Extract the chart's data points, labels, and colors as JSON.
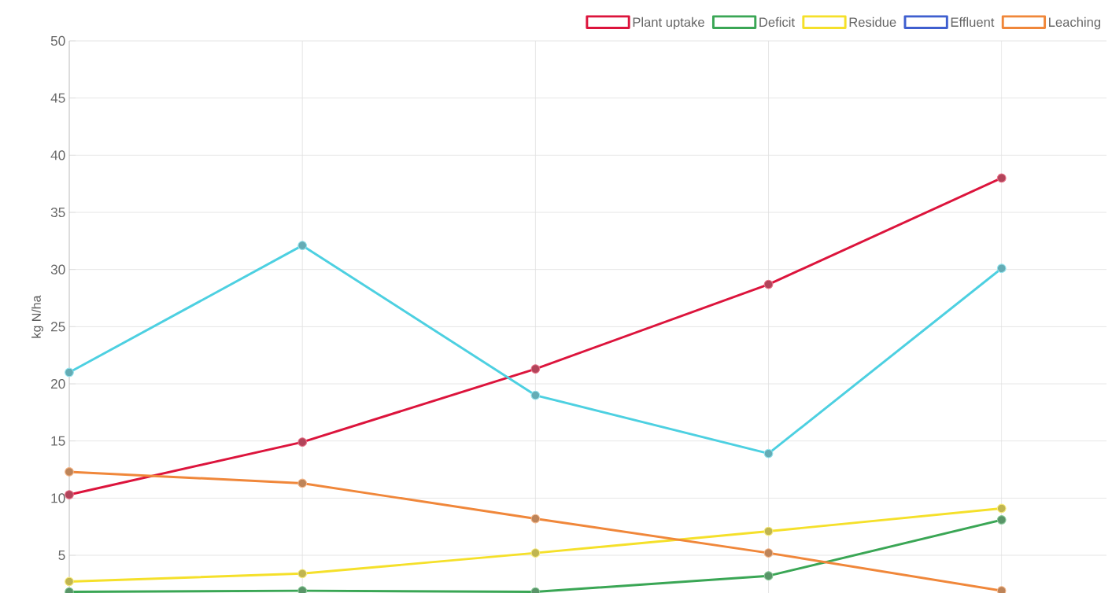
{
  "chart_data": {
    "type": "line",
    "ylabel": "kg N/ha",
    "categories": [
      null,
      null,
      null,
      null,
      null
    ],
    "ylim": [
      1.7,
      50
    ],
    "yticks": [
      5,
      10,
      15,
      20,
      25,
      30,
      35,
      40,
      45,
      50
    ],
    "tick_labels": "y",
    "grid": true,
    "legend": "top right",
    "marker": "circle",
    "line_style": "solid",
    "series": [
      {
        "name": "Plant uptake",
        "color": "#dc143c",
        "values": [
          10.3,
          14.9,
          21.3,
          28.7,
          38.0
        ]
      },
      {
        "name": "Deficit",
        "color": "#3aa655",
        "values": [
          1.8,
          1.9,
          1.8,
          3.2,
          8.1
        ]
      },
      {
        "name": "Residue",
        "color": "#f5e02a",
        "values": [
          2.7,
          3.4,
          5.2,
          7.1,
          9.1
        ]
      },
      {
        "name": "Effluent",
        "color": "#3f5fcf",
        "values": [
          null,
          null,
          null,
          null,
          null
        ]
      },
      {
        "name": "Leaching",
        "color": "#f0873a",
        "values": [
          12.3,
          11.3,
          8.2,
          5.2,
          1.9
        ]
      },
      {
        "color": "#4dd0e1",
        "values": [
          21.0,
          32.1,
          19.0,
          13.9,
          30.1
        ]
      }
    ]
  }
}
